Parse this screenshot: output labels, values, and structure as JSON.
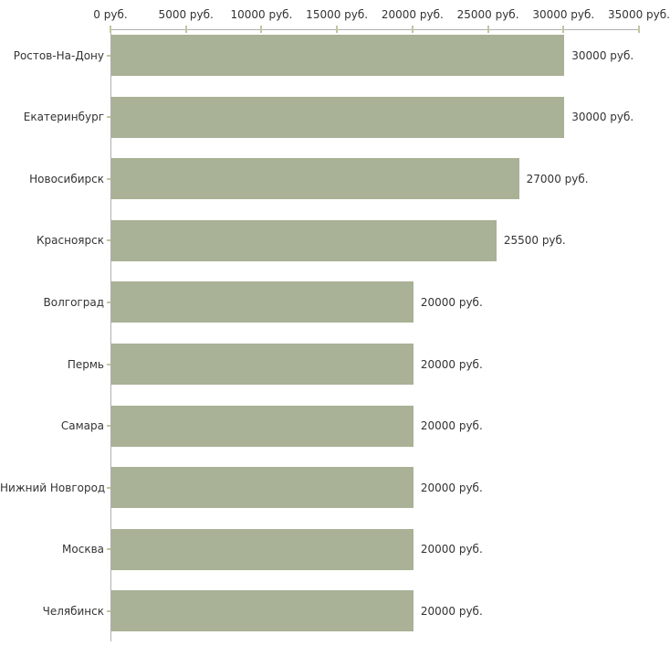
{
  "chart_data": {
    "type": "bar",
    "orientation": "horizontal",
    "title": "",
    "xlabel": "",
    "ylabel": "",
    "categories": [
      "Ростов-На-Дону",
      "Екатеринбург",
      "Новосибирск",
      "Красноярск",
      "Волгоград",
      "Пермь",
      "Самара",
      "Нижний Новгород",
      "Москва",
      "Челябинск"
    ],
    "values": [
      30000,
      30000,
      27000,
      25500,
      20000,
      20000,
      20000,
      20000,
      20000,
      20000
    ],
    "value_labels": [
      "30000 руб.",
      "30000 руб.",
      "27000 руб.",
      "25500 руб.",
      "20000 руб.",
      "20000 руб.",
      "20000 руб.",
      "20000 руб.",
      "20000 руб.",
      "20000 руб."
    ],
    "x_ticks": [
      0,
      5000,
      10000,
      15000,
      20000,
      25000,
      30000,
      35000
    ],
    "x_tick_labels": [
      "0 руб.",
      "5000 руб.",
      "10000 руб.",
      "15000 руб.",
      "20000 руб.",
      "25000 руб.",
      "30000 руб.",
      "35000 руб."
    ],
    "xlim": [
      0,
      35000
    ],
    "grid": false,
    "legend": false,
    "colors": {
      "bar_fill": "#a9b196",
      "axis_line": "#b0b0b0",
      "tick_mark": "#c2c69e",
      "text": "#333333",
      "background": "#ffffff"
    }
  }
}
